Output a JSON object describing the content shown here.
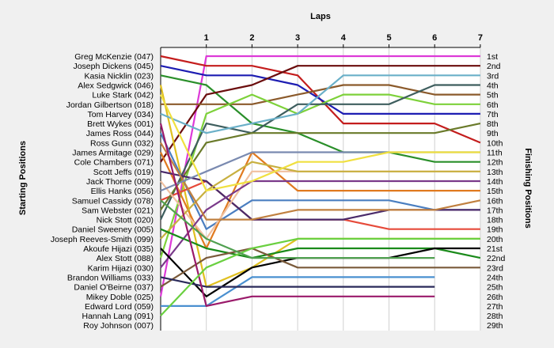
{
  "chart_data": {
    "type": "line",
    "xlabel": "Laps",
    "ylabel_left": "Starting Positions",
    "ylabel_right": "Finishing Positions",
    "x_ticks": [
      "1",
      "2",
      "3",
      "4",
      "5",
      "6",
      "7"
    ],
    "grid": true,
    "drivers": [
      "Greg McKenzie (047)",
      "Joseph Dickens (045)",
      "Kasia Nicklin (023)",
      "Alex Sedgwick (046)",
      "Luke Stark (042)",
      "Jordan Gilbertson (018)",
      "Tom Harvey (034)",
      "Brett Wykes (001)",
      "James Ross (044)",
      "Ross Gunn (032)",
      "James Armitage (029)",
      "Cole Chambers (071)",
      "Scott Jeffs (019)",
      "Jack Thorne (009)",
      "Ellis Hanks (056)",
      "Samuel Cassidy (078)",
      "Sam Webster (021)",
      "Nick Stott (020)",
      "Daniel Sweeney (005)",
      "Joseph Reeves-Smith (099)",
      "Akoufe Hijazi (035)",
      "Alex Stott (088)",
      "Karim Hijazi (030)",
      "Brandon Williams (033)",
      "Daniel O'Beirne (037)",
      "Mikey Doble (025)",
      "Edward Lord (059)",
      "Hannah Lang (091)",
      "Roy Johnson (007)"
    ],
    "finish_labels": [
      "1st",
      "2nd",
      "3rd",
      "4th",
      "5th",
      "6th",
      "7th",
      "8th",
      "9th",
      "10th",
      "11th",
      "12th",
      "13th",
      "14th",
      "15th",
      "16th",
      "17th",
      "18th",
      "19th",
      "20th",
      "21st",
      "22nd",
      "23rd",
      "24th",
      "25th",
      "26th",
      "27th",
      "28th",
      "29th"
    ],
    "series": [
      {
        "color": "#dd3ad8",
        "positions": [
          26,
          1,
          1,
          1,
          1,
          1,
          1,
          1
        ]
      },
      {
        "color": "#c41d1d",
        "positions": [
          1,
          2,
          2,
          3,
          8,
          8,
          8,
          10
        ]
      },
      {
        "color": "#1d1db2",
        "positions": [
          2,
          3,
          3,
          4,
          7,
          7,
          7,
          7
        ]
      },
      {
        "color": "#2a8f2a",
        "positions": [
          3,
          4,
          8,
          9,
          11,
          11,
          12,
          12
        ]
      },
      {
        "color": "#6b0d0d",
        "positions": [
          12,
          5,
          4,
          2,
          2,
          2,
          2,
          2
        ]
      },
      {
        "color": "#8b5a2b",
        "positions": [
          6,
          6,
          6,
          5,
          4,
          4,
          5,
          5
        ]
      },
      {
        "color": "#7dd13a",
        "positions": [
          22,
          7,
          5,
          7,
          5,
          5,
          6,
          6
        ]
      },
      {
        "color": "#e0c020",
        "positions": [
          4,
          25,
          23,
          20,
          20,
          20,
          20,
          20
        ]
      },
      {
        "color": "#3e5e5e",
        "positions": [
          18,
          8,
          9,
          6,
          6,
          6,
          4,
          4
        ]
      },
      {
        "color": "#4a7ec0",
        "positions": [
          9,
          19,
          16,
          16,
          16,
          16,
          17,
          17
        ]
      },
      {
        "color": "#e64a3a",
        "positions": [
          16,
          14,
          18,
          18,
          18,
          19,
          19,
          19
        ]
      },
      {
        "color": "#6a7a2a",
        "positions": [
          17,
          10,
          9,
          9,
          9,
          9,
          9,
          8
        ]
      },
      {
        "color": "#e07a20",
        "positions": [
          11,
          21,
          11,
          15,
          15,
          15,
          15,
          15
        ]
      },
      {
        "color": "#4a2a6a",
        "positions": [
          13,
          14,
          18,
          18,
          18,
          17,
          17,
          17
        ]
      },
      {
        "color": "#f0c0a0",
        "positions": [
          14,
          20,
          13,
          13,
          13,
          13,
          13,
          13
        ]
      },
      {
        "color": "#c8b040",
        "positions": [
          20,
          15,
          12,
          13,
          13,
          13,
          13,
          13
        ]
      },
      {
        "color": "#7a3a8a",
        "positions": [
          23,
          17,
          14,
          14,
          14,
          14,
          14,
          14
        ]
      },
      {
        "color": "#c08040",
        "positions": [
          10,
          18,
          18,
          17,
          17,
          17,
          17,
          16
        ]
      },
      {
        "color": "#6ab0c8",
        "positions": [
          7,
          9,
          8,
          7,
          3,
          3,
          3,
          3
        ]
      },
      {
        "color": "#7a8ab0",
        "positions": [
          15,
          13,
          11,
          11,
          11,
          11,
          11,
          11
        ]
      },
      {
        "color": "#f0e040",
        "positions": [
          5,
          15,
          14,
          12,
          12,
          11,
          11,
          11
        ]
      },
      {
        "color": "#1a8a1a",
        "positions": [
          19,
          21,
          22,
          21,
          21,
          21,
          21,
          22
        ]
      },
      {
        "color": "#000000",
        "positions": [
          21,
          26,
          23,
          22,
          22,
          22,
          21,
          21
        ]
      },
      {
        "color": "#7a5a3a",
        "positions": [
          25,
          22,
          21,
          23,
          23,
          23,
          23,
          23
        ]
      },
      {
        "color": "#4a90d0",
        "positions": [
          27,
          27,
          24,
          24,
          24,
          24,
          24
        ]
      },
      {
        "color": "#2a2a5a",
        "positions": [
          24,
          25,
          25,
          25,
          25,
          25,
          25
        ]
      },
      {
        "color": "#9a1a6a",
        "positions": [
          8,
          27,
          26,
          26,
          26,
          26,
          26
        ]
      },
      {
        "color": "#6ad040",
        "positions": [
          28,
          23,
          21,
          20,
          20,
          20,
          20,
          20
        ]
      },
      {
        "color": "#50a050",
        "positions": [
          16,
          20,
          22,
          22,
          22,
          22,
          22
        ]
      }
    ]
  }
}
